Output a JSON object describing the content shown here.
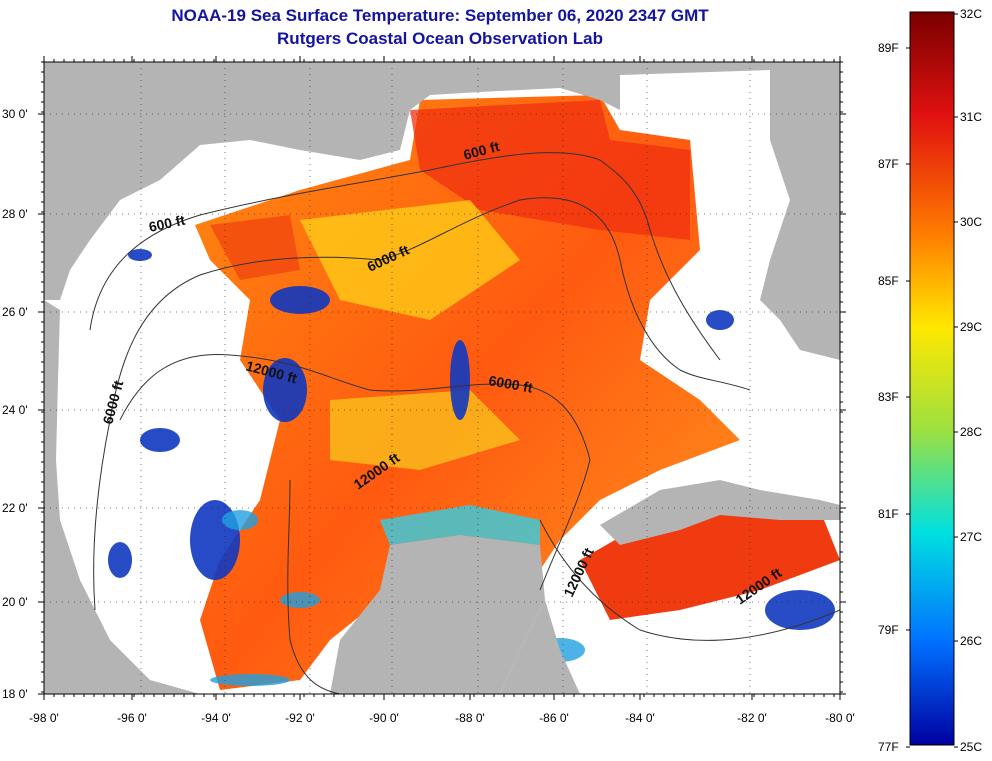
{
  "header": {
    "title": "NOAA-19 Sea Surface Temperature:  September 06, 2020 2347 GMT",
    "subtitle": "Rutgers Coastal Ocean Observation Lab"
  },
  "map": {
    "lat_labels": [
      "30 0'",
      "28 0'",
      "26 0'",
      "24 0'",
      "22 0'",
      "20 0'",
      "18 0'"
    ],
    "lon_labels": [
      "-98 0'",
      "-96 0'",
      "-94 0'",
      "-92 0'",
      "-90 0'",
      "-88 0'",
      "-86 0'",
      "-84 0'",
      "-82 0'",
      "-80 0'"
    ],
    "contour_labels": [
      "600 ft",
      "600 ft",
      "6000 ft",
      "12000 ft",
      "6000 ft",
      "6000 ft",
      "12000 ft",
      "12000 ft",
      "12000 ft"
    ],
    "colors": {
      "land": "#b4b4b4",
      "cloud": "#ffffff"
    }
  },
  "colorbar": {
    "celsius": [
      "32C",
      "31C",
      "30C",
      "29C",
      "28C",
      "27C",
      "26C",
      "25C"
    ],
    "fahrenheit": [
      "89F",
      "87F",
      "85F",
      "83F",
      "81F",
      "79F",
      "77F"
    ],
    "stops": [
      "#7a0000",
      "#e01010",
      "#ff7a00",
      "#ffe800",
      "#9de040",
      "#00e0e0",
      "#0070ff",
      "#0000a0"
    ]
  }
}
